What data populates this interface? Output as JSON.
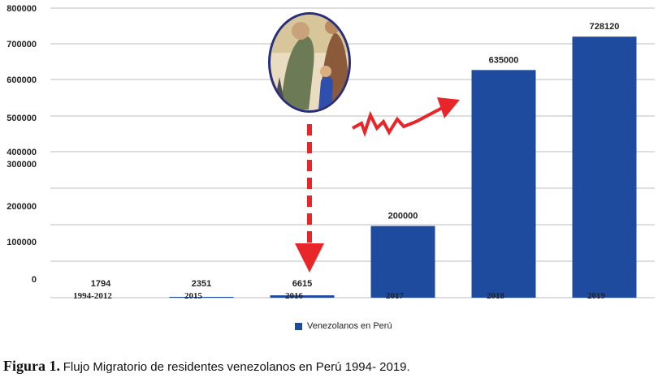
{
  "chart_data": {
    "type": "bar",
    "categories": [
      "1994-2012",
      "2015",
      "2016",
      "2017",
      "2018",
      "2019"
    ],
    "series": [
      {
        "name": "Venezolanos en Perú",
        "values": [
          1794,
          2351,
          6615,
          200000,
          635000,
          728120
        ]
      }
    ],
    "value_labels": [
      "1794",
      "2351",
      "6615",
      "200000",
      "635000",
      "728120"
    ],
    "y_tick_labels": [
      "800000",
      "700000",
      "600000",
      "500000",
      "400000",
      "300000",
      "200000",
      "100000",
      "0"
    ],
    "ylim": [
      0,
      800000
    ],
    "grid": true,
    "bar_color": "#1f4b9f",
    "legend_position": "bottom",
    "annotations": [
      "illustration-of-migrant-family",
      "red-dashed-arrow-down",
      "red-zigzag-arrow-up"
    ]
  },
  "caption": {
    "label": "Figura 1.",
    "text": "Flujo Migratorio de residentes venezolanos en Perú 1994- 2019."
  }
}
